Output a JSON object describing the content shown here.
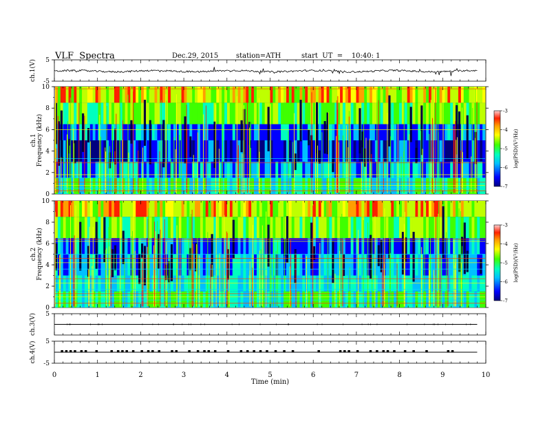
{
  "header": {
    "title": "VLF  Spectra",
    "date": "Dec.29, 2015",
    "station": "station=ATH",
    "start": "start  UT  =    10:40: 1"
  },
  "chart_data": [
    {
      "type": "line",
      "panel": "ch1-waveform",
      "ylabel": "ch.1(V)",
      "yticks": [
        "5",
        "-5"
      ],
      "ylim": [
        -5,
        5
      ],
      "baseline": -0.3,
      "x_range_min": [
        0,
        9.8
      ]
    },
    {
      "type": "heatmap",
      "panel": "ch1-spectrogram",
      "ylabel": "Frequency  (kHz)",
      "ylabel2": "ch.1",
      "ylim": [
        0,
        10
      ],
      "yticks": [
        "0",
        "2",
        "4",
        "6",
        "8",
        "10"
      ],
      "colorbar": {
        "label": "log(PSD)(V²/Hz)",
        "range": [
          -7,
          -3
        ],
        "ticks": [
          "-3",
          "-4",
          "-5",
          "-6",
          "-7"
        ]
      }
    },
    {
      "type": "heatmap",
      "panel": "ch2-spectrogram",
      "ylabel": "Frequency  (kHz)",
      "ylabel2": "ch.2",
      "ylim": [
        0,
        10
      ],
      "yticks": [
        "0",
        "2",
        "4",
        "6",
        "8",
        "10"
      ],
      "colorbar": {
        "label": "log(PSD)(V²/Hz)",
        "range": [
          -7,
          -3
        ],
        "ticks": [
          "-3",
          "-4",
          "-5",
          "-6",
          "-7"
        ]
      }
    },
    {
      "type": "line",
      "panel": "ch3-waveform",
      "ylabel": "ch.3(V)",
      "yticks": [
        "5"
      ],
      "ylim": [
        -5,
        5
      ],
      "baseline": 0
    },
    {
      "type": "line",
      "panel": "ch4-waveform",
      "ylabel": "ch.4(V)",
      "yticks": [
        "5",
        "-5"
      ],
      "ylim": [
        -5,
        5
      ],
      "baseline": 0
    }
  ],
  "xaxis": {
    "label": "Time  (min)",
    "ticks": [
      "0",
      "1",
      "2",
      "3",
      "4",
      "5",
      "6",
      "7",
      "8",
      "9",
      "10"
    ],
    "xlim": [
      0,
      10
    ]
  },
  "colors": {
    "jet": [
      "#00007f",
      "#0000ff",
      "#00bfff",
      "#00ffbf",
      "#3fff00",
      "#bfff00",
      "#ffff00",
      "#ff9f00",
      "#ff2000",
      "#ff9a9a"
    ]
  }
}
